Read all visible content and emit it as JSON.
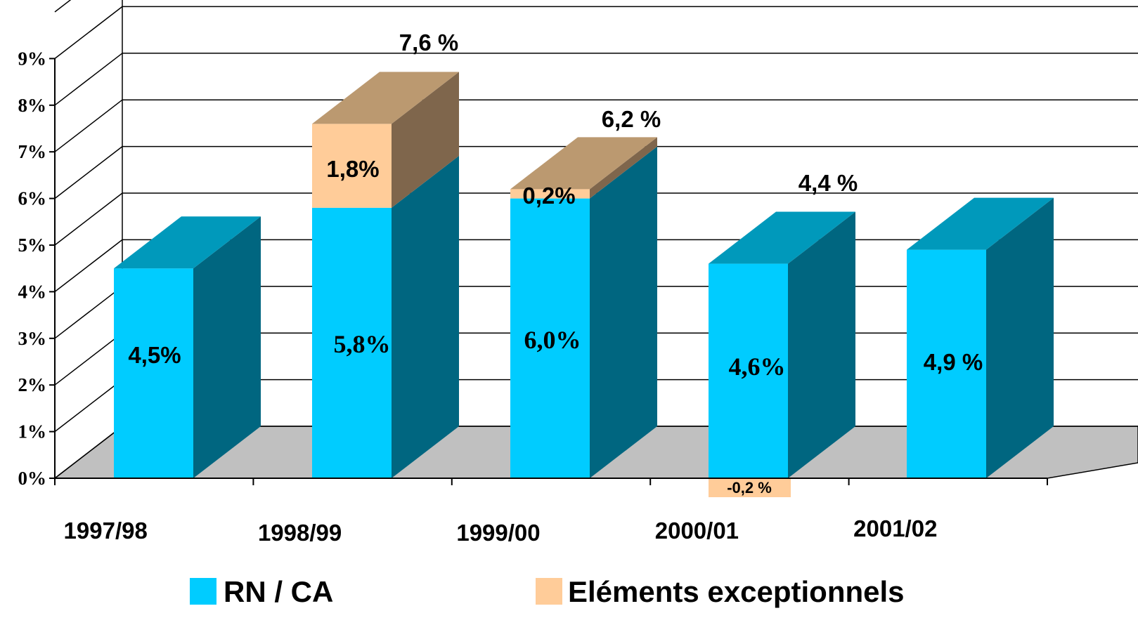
{
  "chart_data": {
    "type": "bar",
    "stacked": true,
    "three_d": true,
    "categories": [
      "1997/98",
      "1998/99",
      "1999/00",
      "2000/01",
      "2001/02"
    ],
    "series": [
      {
        "name": "RN / CA",
        "color": "#00CCFF",
        "values": [
          4.5,
          5.8,
          6.0,
          4.6,
          4.9
        ],
        "data_labels": [
          "4,5%",
          "5,8%",
          "6,0%",
          "4,6%",
          "4,9 %"
        ]
      },
      {
        "name": "Eléments exceptionnels",
        "color": "#FFCC99",
        "values": [
          null,
          1.8,
          0.2,
          -0.2,
          null
        ],
        "data_labels": [
          "",
          "1,8%",
          "0,2%",
          "-0,2 %",
          ""
        ]
      }
    ],
    "total_labels": [
      "",
      "7,6 %",
      "6,2 %",
      "4,4 %",
      ""
    ],
    "y_ticks": [
      "0%",
      "1%",
      "2%",
      "3%",
      "4%",
      "5%",
      "6%",
      "7%",
      "8%",
      "9%"
    ],
    "ylim": [
      0,
      10
    ],
    "grid": true,
    "legend_position": "bottom"
  }
}
